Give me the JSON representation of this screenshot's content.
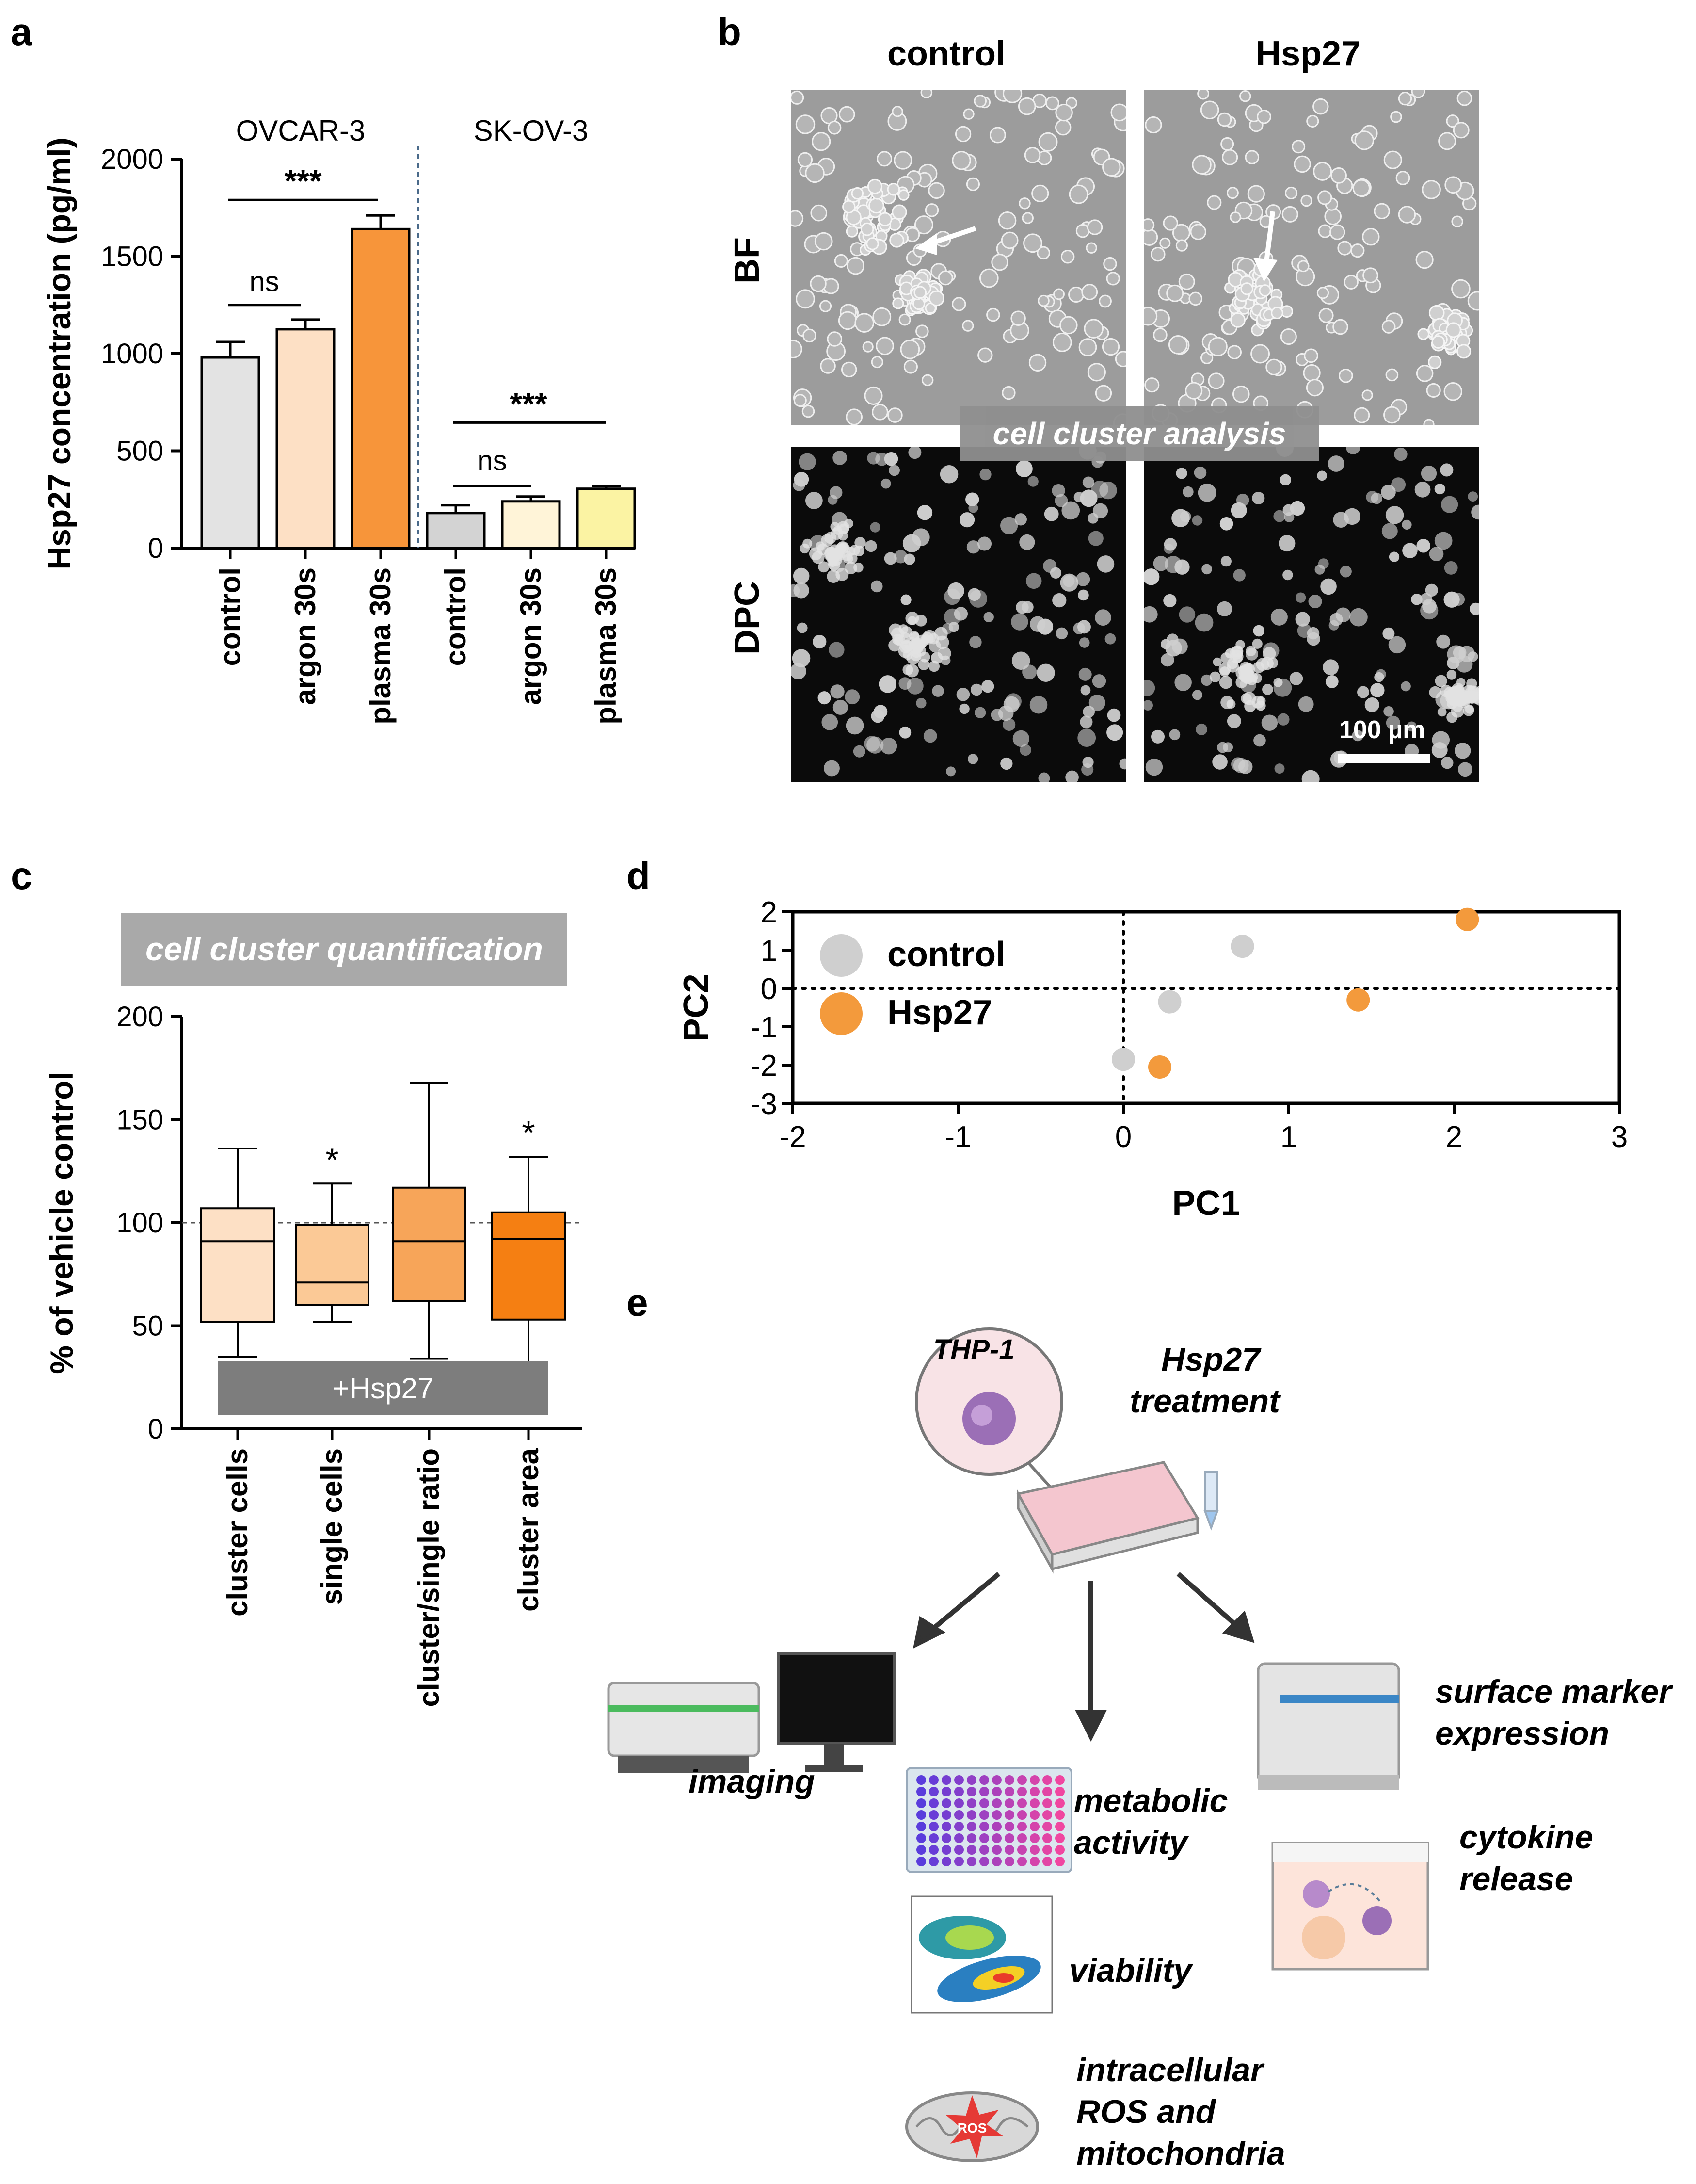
{
  "panels": {
    "a": "a",
    "b": "b",
    "c": "c",
    "d": "d",
    "e": "e"
  },
  "panel_a": {
    "ylabel": "Hsp27 concentration (pg/ml)",
    "group_labels": [
      "OVCAR-3",
      "SK-OV-3"
    ],
    "yticks": [
      "0",
      "500",
      "1000",
      "1500",
      "2000"
    ],
    "sig": {
      "ovcar_ns": "ns",
      "ovcar_star": "***",
      "skov_ns": "ns",
      "skov_star": "***"
    }
  },
  "panel_b": {
    "columns": [
      "control",
      "Hsp27"
    ],
    "rows": [
      "BF",
      "DPC"
    ],
    "banner": "cell cluster analysis",
    "scalebar": "100 µm"
  },
  "panel_c": {
    "banner": "cell cluster quantification",
    "treatment": "+Hsp27",
    "ylabel": "% of vehicle control",
    "yticks": [
      "0",
      "50",
      "100",
      "150",
      "200"
    ],
    "star": "*"
  },
  "panel_d": {
    "xlabel": "PC1",
    "ylabel": "PC2",
    "xticks": [
      "-2",
      "-1",
      "0",
      "1",
      "2",
      "3"
    ],
    "yticks": [
      "2",
      "1",
      "0",
      "-1",
      "-2",
      "-3"
    ],
    "legend": [
      "control",
      "Hsp27"
    ]
  },
  "panel_e": {
    "cell_line": "THP-1",
    "treatment_line1": "Hsp27",
    "treatment_line2": "treatment",
    "imaging": "imaging",
    "metabolic": [
      "metabolic",
      "activity"
    ],
    "viability": "viability",
    "ros": [
      "intracellular",
      "ROS and",
      "mitochondria"
    ],
    "ros_badge": "ROS",
    "surface": [
      "surface marker",
      "expression"
    ],
    "cytokine": [
      "cytokine",
      "release"
    ]
  },
  "colors": {
    "control_gray": "#e3e3e3",
    "argon_ovcar": "#fde0c5",
    "plasma_ovcar": "#f7953a",
    "control_skov": "#d3d3d3",
    "argon_skov": "#fff4d8",
    "plasma_skov": "#fbf3a3",
    "pca_control": "#cfcfcf",
    "pca_hsp27": "#f39a3c"
  },
  "chart_data": [
    {
      "type": "bar",
      "ylabel": "Hsp27 concentration (pg/ml)",
      "ylim": [
        0,
        2000
      ],
      "categories": [
        "control",
        "argon 30s",
        "plasma 30s",
        "control",
        "argon 30s",
        "plasma 30s"
      ],
      "groups": [
        "OVCAR-3",
        "OVCAR-3",
        "OVCAR-3",
        "SK-OV-3",
        "SK-OV-3",
        "SK-OV-3"
      ],
      "values": [
        980,
        1125,
        1640,
        180,
        240,
        305
      ],
      "errors": [
        80,
        50,
        70,
        40,
        25,
        15
      ],
      "colors": [
        "#e3e3e3",
        "#fde0c5",
        "#f7953a",
        "#d3d3d3",
        "#fff4d8",
        "#fbf3a3"
      ]
    },
    {
      "type": "box",
      "ylabel": "% of vehicle control",
      "ylim": [
        0,
        200
      ],
      "reference_line": 100,
      "categories": [
        "cluster cells",
        "single cells",
        "cluster/single ratio",
        "cluster area"
      ],
      "boxes": [
        {
          "min": 35,
          "q1": 52,
          "median": 91,
          "q3": 107,
          "max": 136,
          "color": "#fde0c5",
          "star": false
        },
        {
          "min": 52,
          "q1": 60,
          "median": 71,
          "q3": 99,
          "max": 119,
          "color": "#fbc996",
          "star": true
        },
        {
          "min": 34,
          "q1": 62,
          "median": 91,
          "q3": 117,
          "max": 168,
          "color": "#f7a559",
          "star": false
        },
        {
          "min": 32,
          "q1": 53,
          "median": 92,
          "q3": 105,
          "max": 132,
          "color": "#f57f12",
          "star": true
        }
      ]
    },
    {
      "type": "scatter",
      "xlabel": "PC1",
      "ylabel": "PC2",
      "xlim": [
        -2,
        3
      ],
      "ylim": [
        -3,
        2
      ],
      "series": [
        {
          "name": "control",
          "points": [
            [
              0.72,
              1.1
            ],
            [
              0.28,
              -0.35
            ],
            [
              0.0,
              -1.85
            ]
          ]
        },
        {
          "name": "Hsp27",
          "points": [
            [
              2.08,
              1.8
            ],
            [
              1.42,
              -0.3
            ],
            [
              0.22,
              -2.05
            ]
          ]
        }
      ]
    }
  ]
}
